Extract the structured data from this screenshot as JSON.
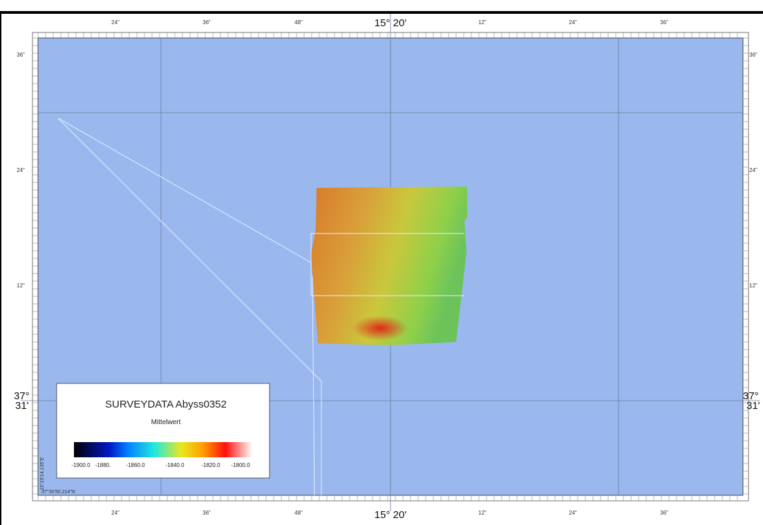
{
  "map": {
    "top_labels": [
      "24\"",
      "36\"",
      "48\"",
      "15° 20'",
      "12\"",
      "24\"",
      "36\""
    ],
    "bottom_labels": [
      "24\"",
      "36\"",
      "48\"",
      "15° 20'",
      "12\"",
      "24\"",
      "36\""
    ],
    "left_labels": [
      "36\"",
      "24\"",
      "12\""
    ],
    "right_labels": [
      "36\"",
      "24\"",
      "12\""
    ],
    "left_major": [
      "37°",
      "31'"
    ],
    "right_major": [
      "37°",
      "31'"
    ],
    "corner_lon": "15°19'14.135\"E",
    "corner_lat": "37°30'50.214\"N",
    "legend": {
      "title": "SURVEYDATA Abyss0352",
      "subtitle": "Mittelwert",
      "scale_labels": [
        "-1900.0",
        "-1880.",
        "-1860.0",
        "-1840.0",
        "-1820.0",
        "-1800.0"
      ]
    }
  }
}
